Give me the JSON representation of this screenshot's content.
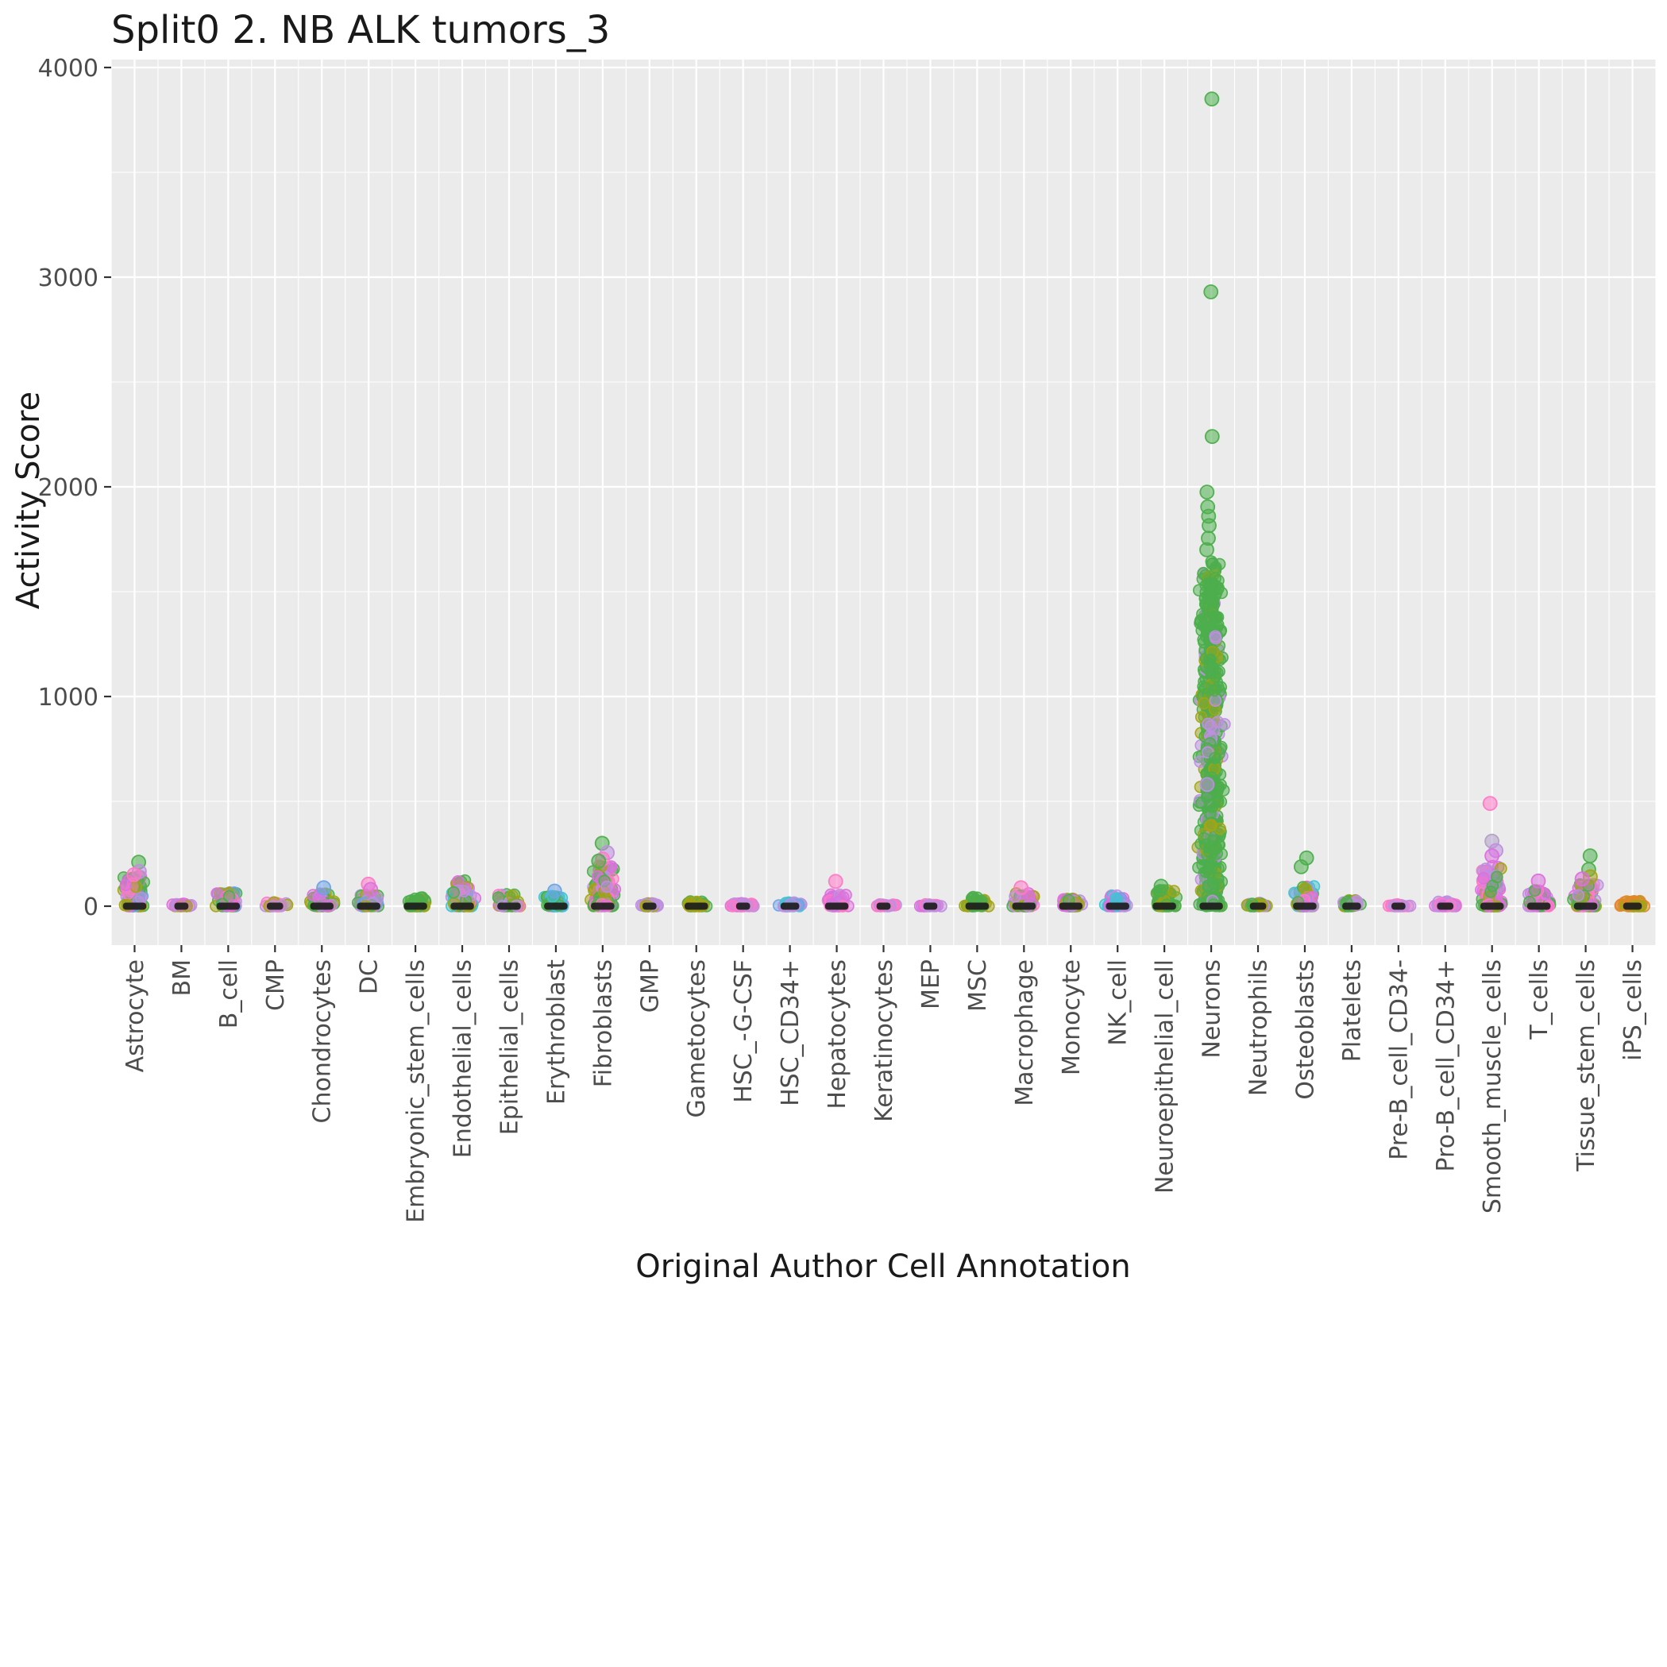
{
  "chart_data": {
    "type": "strip",
    "title": "Split0 2. NB ALK tumors_3",
    "xlabel": "Original Author Cell Annotation",
    "ylabel": "Activity Score",
    "ylim": [
      -185,
      4040
    ],
    "yticks": [
      0,
      1000,
      2000,
      3000,
      4000
    ],
    "minor_yticks": [
      500,
      1500,
      2500,
      3500
    ],
    "grid": true,
    "legend": false,
    "panel": {
      "bg": "#EBEBEB",
      "grid": "#FFFFFF",
      "dash": "#1C1C1C",
      "tick": "#333333",
      "tick_label": "#4D4D4D",
      "text": "#1A1A1A"
    },
    "palette": {
      "green": "#4CAE4C",
      "olive": "#A2A415",
      "orange": "#E2882A",
      "magenta": "#DD6FDD",
      "violet": "#BE8FE0",
      "pink": "#FF79C6",
      "blue": "#6BA2E6",
      "cyan": "#3FC4D4",
      "grayviolet": "#B3A0C6"
    },
    "categories": [
      {
        "label": "Astrocyte",
        "n": 120,
        "max": 150,
        "colors": [
          "green",
          "green",
          "violet",
          "olive",
          "pink",
          "blue",
          "magenta"
        ],
        "outliers": [
          {
            "y": 210,
            "color": "green"
          },
          {
            "y": 165,
            "color": "violet"
          },
          {
            "y": 150,
            "color": "pink"
          }
        ]
      },
      {
        "label": "BM",
        "n": 25,
        "max": 12,
        "dash": 0.3,
        "colors": [
          "violet",
          "olive",
          "magenta"
        ],
        "outliers": []
      },
      {
        "label": "B_cell",
        "n": 80,
        "max": 65,
        "colors": [
          "green",
          "blue",
          "pink",
          "olive",
          "violet",
          "magenta"
        ],
        "outliers": []
      },
      {
        "label": "CMP",
        "n": 35,
        "max": 20,
        "dash": 0.35,
        "colors": [
          "olive",
          "violet",
          "pink"
        ],
        "outliers": []
      },
      {
        "label": "Chondrocytes",
        "n": 70,
        "max": 60,
        "colors": [
          "violet",
          "green",
          "olive",
          "magenta"
        ],
        "outliers": [
          {
            "y": 88,
            "color": "blue"
          }
        ]
      },
      {
        "label": "DC",
        "n": 70,
        "max": 55,
        "colors": [
          "green",
          "blue",
          "violet",
          "olive"
        ],
        "outliers": [
          {
            "y": 105,
            "color": "pink"
          },
          {
            "y": 80,
            "color": "magenta"
          }
        ]
      },
      {
        "label": "Embryonic_stem_cells",
        "n": 60,
        "max": 42,
        "colors": [
          "green",
          "green",
          "olive"
        ],
        "outliers": []
      },
      {
        "label": "Endothelial_cells",
        "n": 100,
        "max": 125,
        "colors": [
          "green",
          "cyan",
          "violet",
          "pink",
          "olive",
          "magenta"
        ],
        "outliers": []
      },
      {
        "label": "Epithelial_cells",
        "n": 70,
        "max": 58,
        "colors": [
          "green",
          "violet",
          "pink",
          "olive"
        ],
        "outliers": []
      },
      {
        "label": "Erythroblast",
        "n": 55,
        "max": 48,
        "colors": [
          "blue",
          "violet",
          "green",
          "cyan"
        ],
        "outliers": [
          {
            "y": 72,
            "color": "blue"
          }
        ]
      },
      {
        "label": "Fibroblasts",
        "n": 140,
        "max": 195,
        "colors": [
          "green",
          "green",
          "violet",
          "pink",
          "olive",
          "magenta"
        ],
        "outliers": [
          {
            "y": 300,
            "color": "green"
          },
          {
            "y": 255,
            "color": "violet"
          },
          {
            "y": 225,
            "color": "pink"
          },
          {
            "y": 215,
            "color": "green"
          }
        ]
      },
      {
        "label": "GMP",
        "n": 30,
        "max": 14,
        "dash": 0.3,
        "colors": [
          "violet",
          "olive"
        ],
        "outliers": []
      },
      {
        "label": "Gametocytes",
        "n": 50,
        "max": 24,
        "colors": [
          "olive",
          "olive",
          "green"
        ],
        "outliers": []
      },
      {
        "label": "HSC_-G-CSF",
        "n": 35,
        "max": 14,
        "dash": 0.3,
        "colors": [
          "pink",
          "violet",
          "magenta"
        ],
        "outliers": []
      },
      {
        "label": "HSC_CD34+",
        "n": 45,
        "max": 18,
        "dash": 0.4,
        "colors": [
          "blue",
          "cyan",
          "violet"
        ],
        "outliers": []
      },
      {
        "label": "Hepatocytes",
        "n": 80,
        "max": 58,
        "colors": [
          "magenta",
          "magenta",
          "violet",
          "pink"
        ],
        "outliers": [
          {
            "y": 118,
            "color": "pink"
          }
        ]
      },
      {
        "label": "Keratinocytes",
        "n": 25,
        "max": 9,
        "dash": 0.3,
        "colors": [
          "violet",
          "pink"
        ],
        "outliers": []
      },
      {
        "label": "MEP",
        "n": 25,
        "max": 9,
        "dash": 0.3,
        "colors": [
          "violet",
          "pink",
          "magenta"
        ],
        "outliers": []
      },
      {
        "label": "MSC",
        "n": 45,
        "max": 45,
        "colors": [
          "green",
          "green",
          "olive"
        ],
        "outliers": []
      },
      {
        "label": "Macrophage",
        "n": 90,
        "max": 62,
        "colors": [
          "magenta",
          "violet",
          "pink",
          "green",
          "olive"
        ],
        "outliers": [
          {
            "y": 88,
            "color": "pink"
          }
        ]
      },
      {
        "label": "Monocyte",
        "n": 70,
        "max": 40,
        "colors": [
          "magenta",
          "violet",
          "green",
          "olive"
        ],
        "outliers": []
      },
      {
        "label": "NK_cell",
        "n": 55,
        "max": 52,
        "colors": [
          "blue",
          "violet",
          "magenta",
          "cyan"
        ],
        "outliers": []
      },
      {
        "label": "Neuroepithelial_cell",
        "n": 70,
        "max": 78,
        "colors": [
          "green",
          "green",
          "olive"
        ],
        "outliers": [
          {
            "y": 95,
            "color": "green"
          }
        ]
      },
      {
        "label": "Neurons",
        "n": 420,
        "max": 1650,
        "skew": 1.6,
        "colors": [
          "green",
          "green",
          "green",
          "green",
          "green",
          "green",
          "green",
          "violet",
          "olive"
        ],
        "uniform": [
          {
            "n": 190,
            "lo": 250,
            "hi": 1550
          }
        ],
        "outliers": [
          {
            "y": 3850,
            "color": "green"
          },
          {
            "y": 2930,
            "color": "green"
          },
          {
            "y": 2240,
            "color": "green"
          },
          {
            "y": 1975,
            "color": "green"
          },
          {
            "y": 1905,
            "color": "green"
          },
          {
            "y": 1860,
            "color": "green"
          },
          {
            "y": 1815,
            "color": "green"
          },
          {
            "y": 1755,
            "color": "green"
          },
          {
            "y": 1700,
            "color": "green"
          },
          {
            "y": 580,
            "color": "violet"
          }
        ]
      },
      {
        "label": "Neutrophils",
        "n": 35,
        "max": 16,
        "dash": 0.35,
        "colors": [
          "olive",
          "violet",
          "green"
        ],
        "outliers": []
      },
      {
        "label": "Osteoblasts",
        "n": 85,
        "max": 100,
        "colors": [
          "cyan",
          "violet",
          "pink",
          "green",
          "olive",
          "magenta"
        ],
        "outliers": [
          {
            "y": 230,
            "color": "green"
          },
          {
            "y": 188,
            "color": "green"
          }
        ]
      },
      {
        "label": "Platelets",
        "n": 45,
        "max": 28,
        "dash": 0.4,
        "colors": [
          "violet",
          "olive",
          "green"
        ],
        "outliers": []
      },
      {
        "label": "Pre-B_cell_CD34-",
        "n": 25,
        "max": 9,
        "dash": 0.3,
        "colors": [
          "violet",
          "pink"
        ],
        "outliers": []
      },
      {
        "label": "Pro-B_cell_CD34+",
        "n": 45,
        "max": 22,
        "dash": 0.35,
        "colors": [
          "magenta",
          "violet",
          "pink"
        ],
        "outliers": []
      },
      {
        "label": "Smooth_muscle_cells",
        "n": 150,
        "max": 195,
        "colors": [
          "magenta",
          "magenta",
          "violet",
          "pink",
          "olive",
          "green"
        ],
        "outliers": [
          {
            "y": 490,
            "color": "pink"
          },
          {
            "y": 310,
            "color": "grayviolet"
          },
          {
            "y": 265,
            "color": "violet"
          },
          {
            "y": 240,
            "color": "magenta"
          }
        ]
      },
      {
        "label": "T_cells",
        "n": 95,
        "max": 78,
        "colors": [
          "magenta",
          "magenta",
          "violet",
          "pink",
          "green"
        ],
        "outliers": [
          {
            "y": 120,
            "color": "magenta"
          }
        ]
      },
      {
        "label": "Tissue_stem_cells",
        "n": 110,
        "max": 105,
        "colors": [
          "violet",
          "magenta",
          "green",
          "olive",
          "pink"
        ],
        "outliers": [
          {
            "y": 240,
            "color": "green"
          },
          {
            "y": 175,
            "color": "green"
          },
          {
            "y": 140,
            "color": "olive"
          },
          {
            "y": 130,
            "color": "magenta"
          }
        ]
      },
      {
        "label": "iPS_cells",
        "n": 55,
        "max": 24,
        "dash": 0.4,
        "colors": [
          "orange",
          "orange",
          "olive"
        ],
        "outliers": []
      }
    ]
  }
}
